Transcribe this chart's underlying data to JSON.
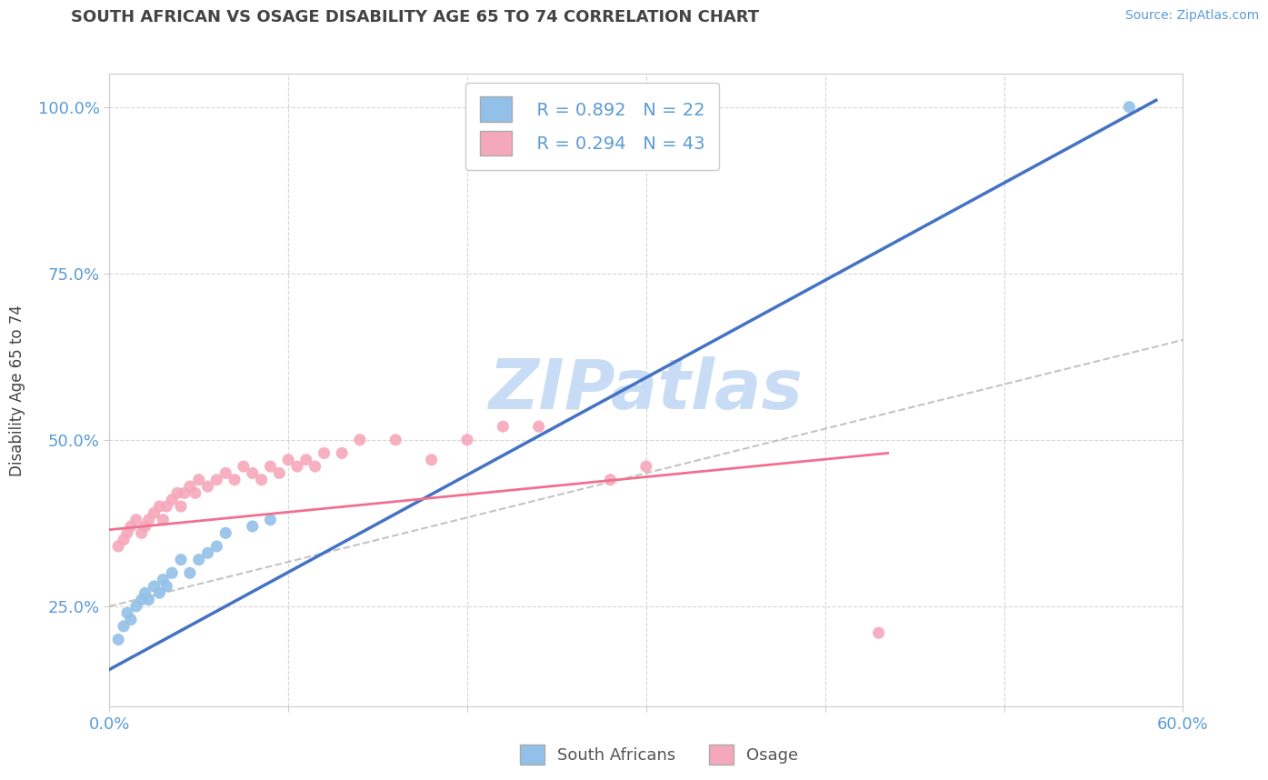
{
  "title": "SOUTH AFRICAN VS OSAGE DISABILITY AGE 65 TO 74 CORRELATION CHART",
  "source_text": "Source: ZipAtlas.com",
  "ylabel": "Disability Age 65 to 74",
  "xlim": [
    0.0,
    0.6
  ],
  "ylim": [
    0.1,
    1.05
  ],
  "xticks": [
    0.0,
    0.1,
    0.2,
    0.3,
    0.4,
    0.5,
    0.6
  ],
  "xtick_labels": [
    "0.0%",
    "",
    "",
    "",
    "",
    "",
    "60.0%"
  ],
  "yticks": [
    0.25,
    0.5,
    0.75,
    1.0
  ],
  "ytick_labels": [
    "25.0%",
    "50.0%",
    "75.0%",
    "100.0%"
  ],
  "title_color": "#444444",
  "axis_color": "#5b9bd5",
  "grid_color": "#cccccc",
  "watermark_text": "ZIPatlas",
  "watermark_color": "#c8ddf5",
  "south_african_color": "#92c0e8",
  "osage_color": "#f5a8bb",
  "south_african_line_color": "#4472c4",
  "osage_line_color": "#f07090",
  "ref_line_color": "#c0c0c0",
  "legend_r1": "R = 0.892",
  "legend_n1": "N = 22",
  "legend_r2": "R = 0.294",
  "legend_n2": "N = 43",
  "south_african_x": [
    0.005,
    0.008,
    0.01,
    0.012,
    0.015,
    0.018,
    0.02,
    0.022,
    0.025,
    0.028,
    0.03,
    0.032,
    0.035,
    0.04,
    0.045,
    0.05,
    0.055,
    0.06,
    0.065,
    0.08,
    0.09,
    0.57
  ],
  "south_african_y": [
    0.2,
    0.22,
    0.24,
    0.23,
    0.25,
    0.26,
    0.27,
    0.26,
    0.28,
    0.27,
    0.29,
    0.28,
    0.3,
    0.32,
    0.3,
    0.32,
    0.33,
    0.34,
    0.36,
    0.37,
    0.38,
    1.0
  ],
  "osage_x": [
    0.005,
    0.008,
    0.01,
    0.012,
    0.015,
    0.018,
    0.02,
    0.022,
    0.025,
    0.028,
    0.03,
    0.032,
    0.035,
    0.038,
    0.04,
    0.042,
    0.045,
    0.048,
    0.05,
    0.055,
    0.06,
    0.065,
    0.07,
    0.075,
    0.08,
    0.085,
    0.09,
    0.095,
    0.1,
    0.105,
    0.11,
    0.115,
    0.12,
    0.13,
    0.14,
    0.16,
    0.18,
    0.2,
    0.22,
    0.24,
    0.28,
    0.3,
    0.43
  ],
  "osage_y": [
    0.34,
    0.35,
    0.36,
    0.37,
    0.38,
    0.36,
    0.37,
    0.38,
    0.39,
    0.4,
    0.38,
    0.4,
    0.41,
    0.42,
    0.4,
    0.42,
    0.43,
    0.42,
    0.44,
    0.43,
    0.44,
    0.45,
    0.44,
    0.46,
    0.45,
    0.44,
    0.46,
    0.45,
    0.47,
    0.46,
    0.47,
    0.46,
    0.48,
    0.48,
    0.5,
    0.5,
    0.47,
    0.5,
    0.52,
    0.52,
    0.44,
    0.46,
    0.21
  ],
  "sa_line_x": [
    0.0,
    0.585
  ],
  "sa_line_y": [
    0.155,
    1.01
  ],
  "osage_line_x": [
    0.0,
    0.435
  ],
  "osage_line_y": [
    0.365,
    0.48
  ],
  "ref_line_x": [
    0.0,
    0.6
  ],
  "ref_line_y": [
    0.25,
    0.65
  ]
}
